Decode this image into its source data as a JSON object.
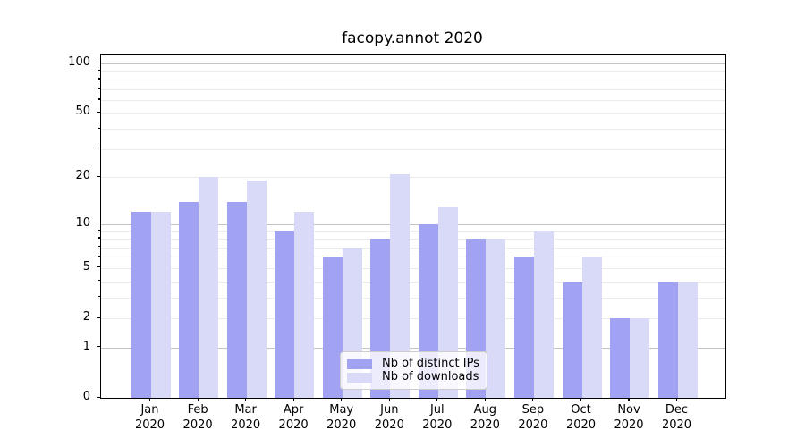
{
  "chart_data": {
    "type": "bar",
    "title": "facopy.annot 2020",
    "categories": [
      "Jan",
      "Feb",
      "Mar",
      "Apr",
      "May",
      "Jun",
      "Jul",
      "Aug",
      "Sep",
      "Oct",
      "Nov",
      "Dec"
    ],
    "x_tick_year": "2020",
    "series": [
      {
        "name": "Nb of distinct IPs",
        "color": "#a2a2f2",
        "values": [
          12,
          14,
          14,
          9,
          6,
          8,
          10,
          8,
          6,
          4,
          2,
          4
        ]
      },
      {
        "name": "Nb of downloads",
        "color": "#d9d9f8",
        "values": [
          12,
          20,
          19,
          12,
          7,
          21,
          13,
          8,
          9,
          6,
          2,
          4
        ]
      }
    ],
    "yscale": "log1p",
    "ylim": [
      0,
      113
    ],
    "yticks_labeled": [
      100,
      50,
      20,
      10,
      5,
      2,
      1,
      0
    ],
    "yticks_minor": [
      2,
      3,
      4,
      5,
      6,
      7,
      8,
      9,
      20,
      30,
      40,
      50,
      60,
      70,
      80,
      90
    ],
    "ygrid_major": [
      1,
      10,
      100
    ],
    "grid": true,
    "legend_position": "lower center",
    "xlabel": "",
    "ylabel": ""
  }
}
